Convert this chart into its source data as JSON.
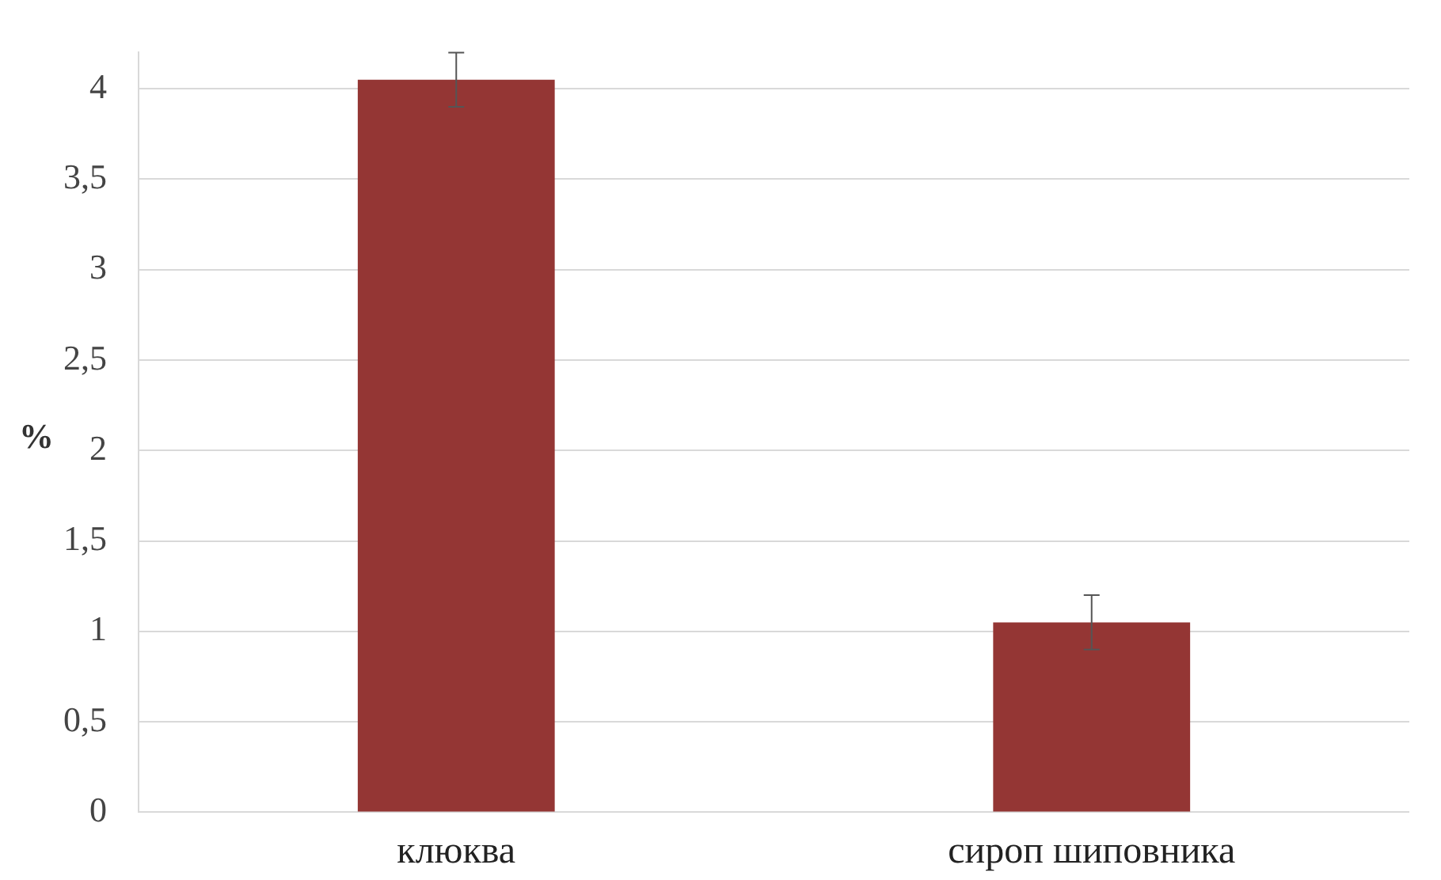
{
  "chart_data": {
    "type": "bar",
    "ylabel": "%",
    "categories": [
      "клюква",
      "сироп шиповника"
    ],
    "values": [
      4.05,
      1.05
    ],
    "errors": [
      0.15,
      0.15
    ],
    "color": "#943634",
    "ylim": [
      0,
      4.2
    ],
    "yticks": [
      {
        "value": 0,
        "label": "0"
      },
      {
        "value": 0.5,
        "label": "0,5"
      },
      {
        "value": 1,
        "label": "1"
      },
      {
        "value": 1.5,
        "label": "1,5"
      },
      {
        "value": 2,
        "label": "2"
      },
      {
        "value": 2.5,
        "label": "2,5"
      },
      {
        "value": 3,
        "label": "3"
      },
      {
        "value": 3.5,
        "label": "3,5"
      },
      {
        "value": 4,
        "label": "4"
      }
    ],
    "grid": "y",
    "legend": false
  }
}
